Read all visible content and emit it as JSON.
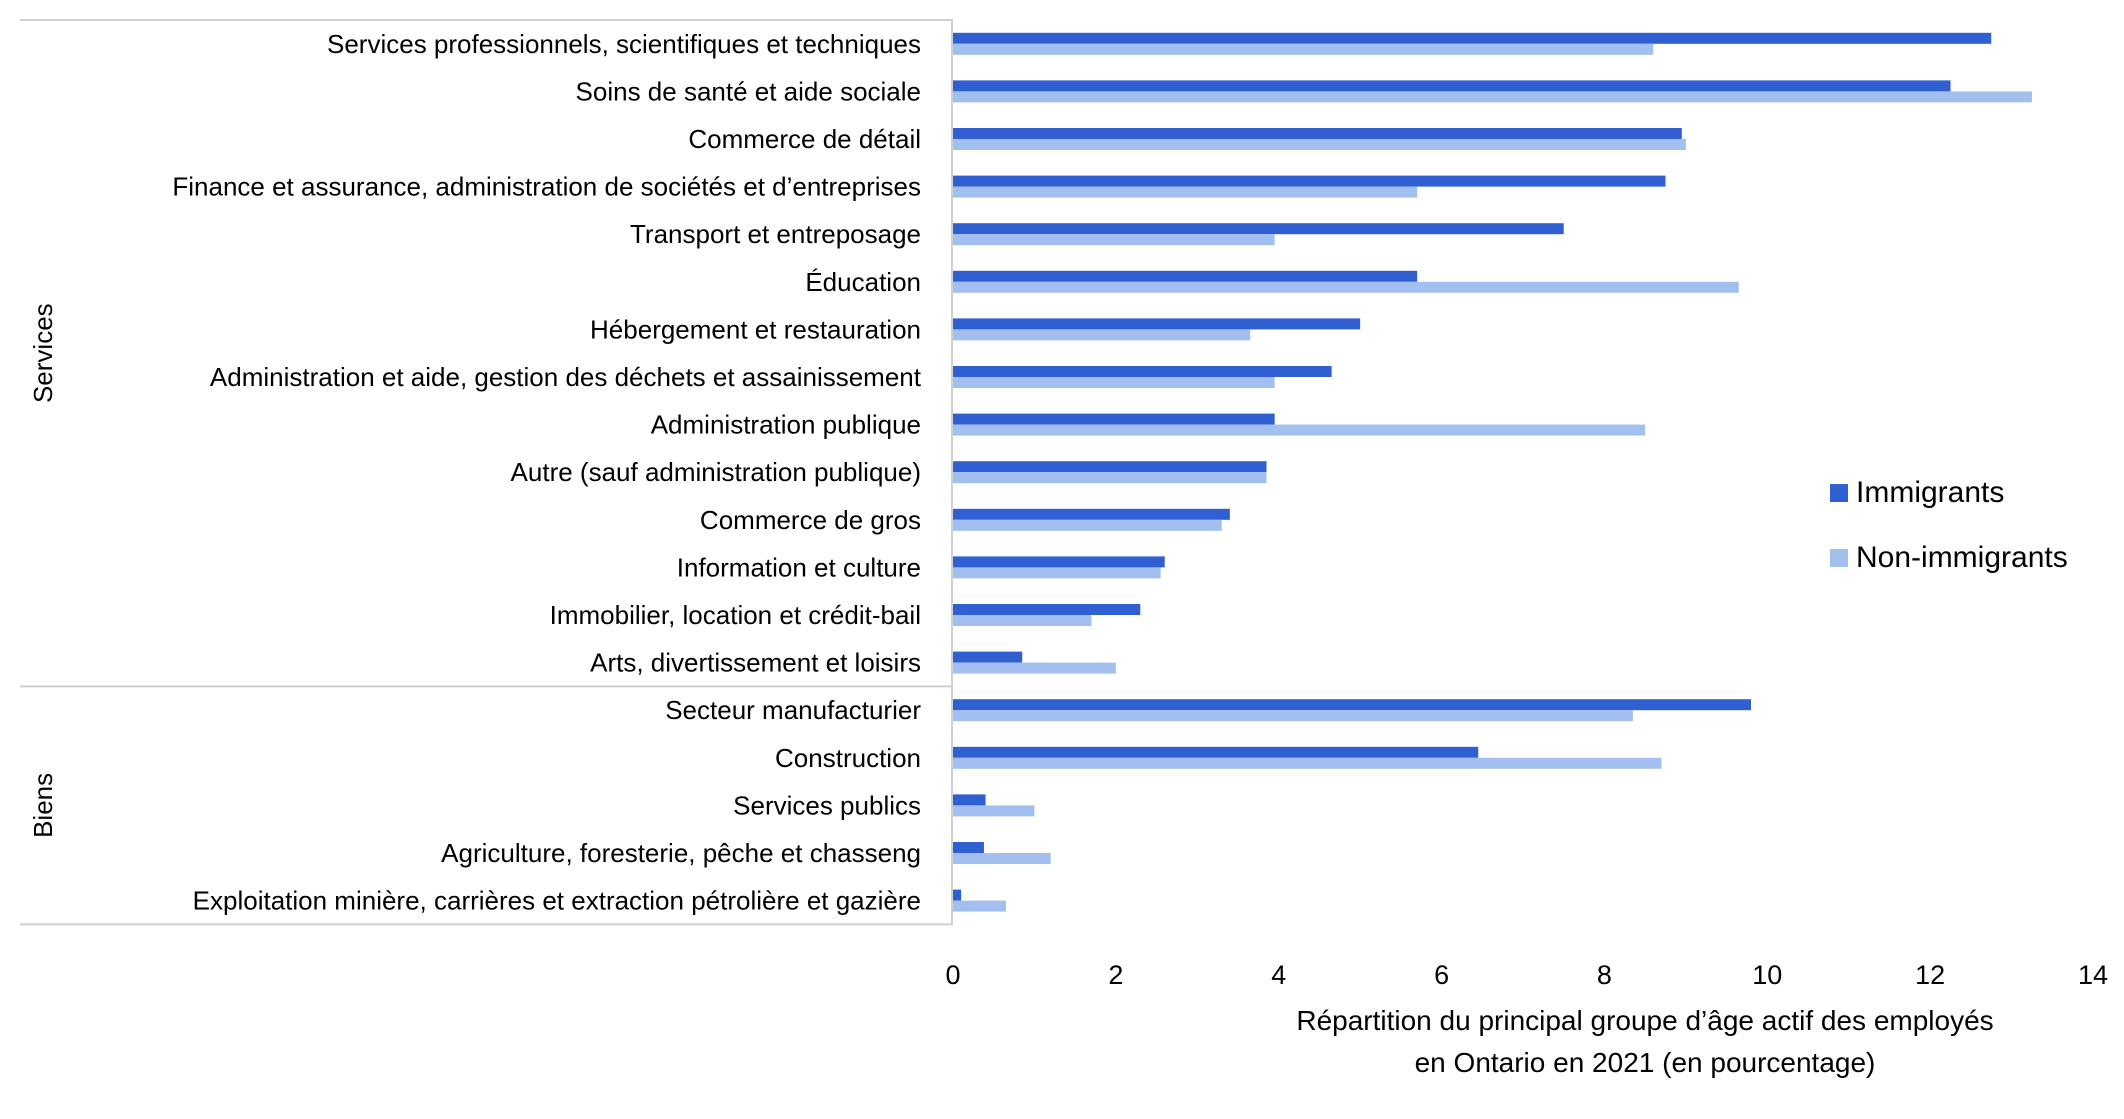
{
  "chart_data": {
    "type": "bar",
    "orientation": "horizontal",
    "xlabel_lines": [
      "Répartition du principal groupe d’âge actif des employés",
      "en Ontario en 2021 (en pourcentage)"
    ],
    "xlim": [
      0,
      14
    ],
    "xticks": [
      0,
      2,
      4,
      6,
      8,
      10,
      12,
      14
    ],
    "grid": false,
    "legend_position": "right",
    "colors": {
      "Immigrants": "#2f5fd0",
      "Non-immigrants": "#a3bff0"
    },
    "groups": [
      {
        "name": "Services",
        "categories": [
          "Services professionnels, scientifiques et techniques",
          "Soins de santé et aide sociale",
          "Commerce de détail",
          "Finance et assurance, administration de sociétés et d’entreprises",
          "Transport et entreposage",
          "Éducation",
          "Hébergement et restauration",
          "Administration et aide, gestion des déchets et assainissement",
          "Administration publique",
          "Autre (sauf administration publique)",
          "Commerce de gros",
          "Information et culture",
          "Immobilier, location et crédit-bail",
          "Arts, divertissement et loisirs"
        ]
      },
      {
        "name": "Biens",
        "categories": [
          "Secteur manufacturier",
          "Construction",
          "Services publics",
          "Agriculture, foresterie, pêche et chasseng",
          "Exploitation minière, carrières et extraction pétrolière et gazière"
        ]
      }
    ],
    "categories": [
      "Services professionnels, scientifiques et techniques",
      "Soins de santé et aide sociale",
      "Commerce de détail",
      "Finance et assurance, administration de sociétés et d’entreprises",
      "Transport et entreposage",
      "Éducation",
      "Hébergement et restauration",
      "Administration et aide, gestion des déchets et assainissement",
      "Administration publique",
      "Autre (sauf administration publique)",
      "Commerce de gros",
      "Information et culture",
      "Immobilier, location et crédit-bail",
      "Arts, divertissement et loisirs",
      "Secteur manufacturier",
      "Construction",
      "Services publics",
      "Agriculture, foresterie, pêche et chasseng",
      "Exploitation minière, carrières et extraction pétrolière et gazière"
    ],
    "series": [
      {
        "name": "Immigrants",
        "values": [
          12.75,
          12.25,
          8.95,
          8.75,
          7.5,
          5.7,
          5.0,
          4.65,
          3.95,
          3.85,
          3.4,
          2.6,
          2.3,
          0.85,
          9.8,
          6.45,
          0.4,
          0.38,
          0.1
        ]
      },
      {
        "name": "Non-immigrants",
        "values": [
          8.6,
          13.25,
          9.0,
          5.7,
          3.95,
          9.65,
          3.65,
          3.95,
          8.5,
          3.85,
          3.3,
          2.55,
          1.7,
          2.0,
          8.35,
          8.7,
          1.0,
          1.2,
          0.65
        ]
      }
    ]
  }
}
